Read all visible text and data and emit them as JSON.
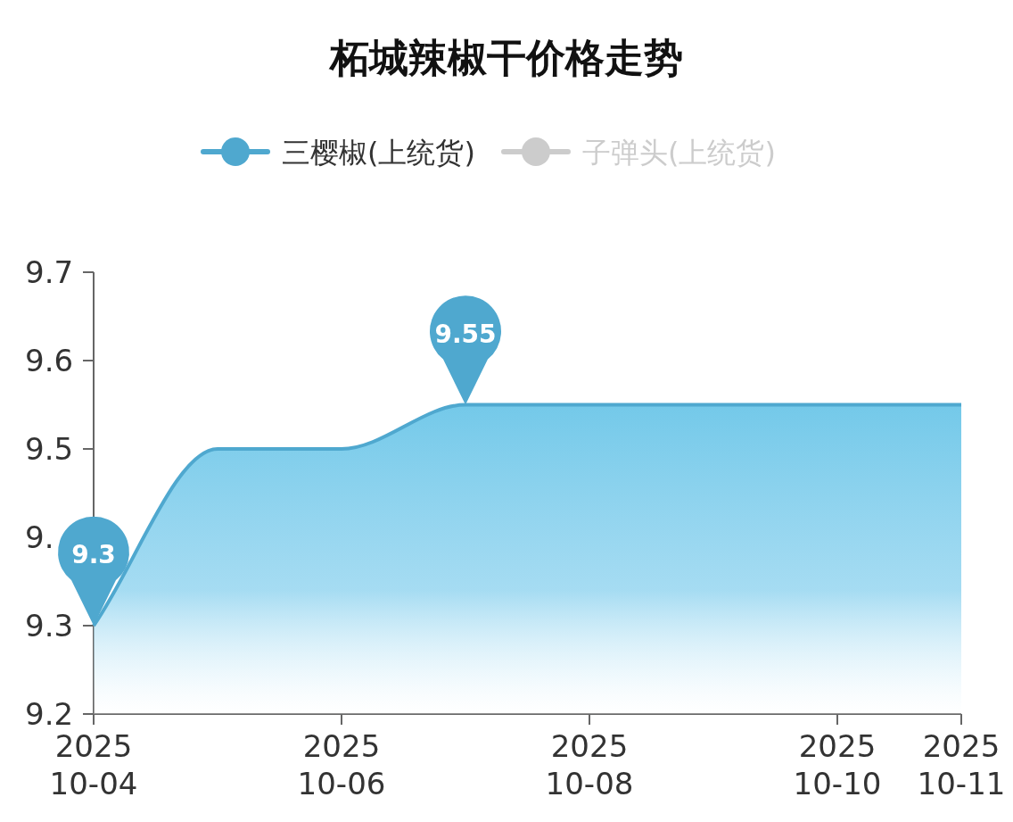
{
  "chart_data": {
    "type": "area",
    "title": "柘城辣椒干价格走势",
    "x": [
      "2025-10-04",
      "2025-10-05",
      "2025-10-06",
      "2025-10-07",
      "2025-10-08",
      "2025-10-09",
      "2025-10-10",
      "2025-10-11"
    ],
    "series": [
      {
        "name": "三樱椒(上统货)",
        "color": "#4fa8cf",
        "values": [
          9.3,
          9.5,
          9.5,
          9.55,
          9.55,
          9.55,
          9.55,
          9.55
        ]
      },
      {
        "name": "子弹头(上统货)",
        "color": "#cccccc",
        "values": [
          null,
          null,
          null,
          null,
          null,
          null,
          null,
          null
        ]
      }
    ],
    "xlim": [
      "2025-10-04",
      "2025-10-11"
    ],
    "xticks": [
      {
        "value": "2025-10-04",
        "label": "2025\n10-04"
      },
      {
        "value": "2025-10-06",
        "label": "2025\n10-06"
      },
      {
        "value": "2025-10-08",
        "label": "2025\n10-08"
      },
      {
        "value": "2025-10-10",
        "label": "2025\n10-10"
      },
      {
        "value": "2025-10-11",
        "label": "2025\n10-11"
      }
    ],
    "ylim": [
      9.2,
      9.7
    ],
    "yticks": [
      9.2,
      9.3,
      {
        "value": 9.4,
        "label": "9."
      },
      9.5,
      9.6,
      9.7
    ],
    "annotations": [
      {
        "text": "9.3",
        "x": "2025-10-04",
        "y": 9.3
      },
      {
        "text": "9.55",
        "x": "2025-10-07",
        "y": 9.55
      }
    ],
    "legend": "top",
    "grid": false,
    "marker": "none"
  }
}
